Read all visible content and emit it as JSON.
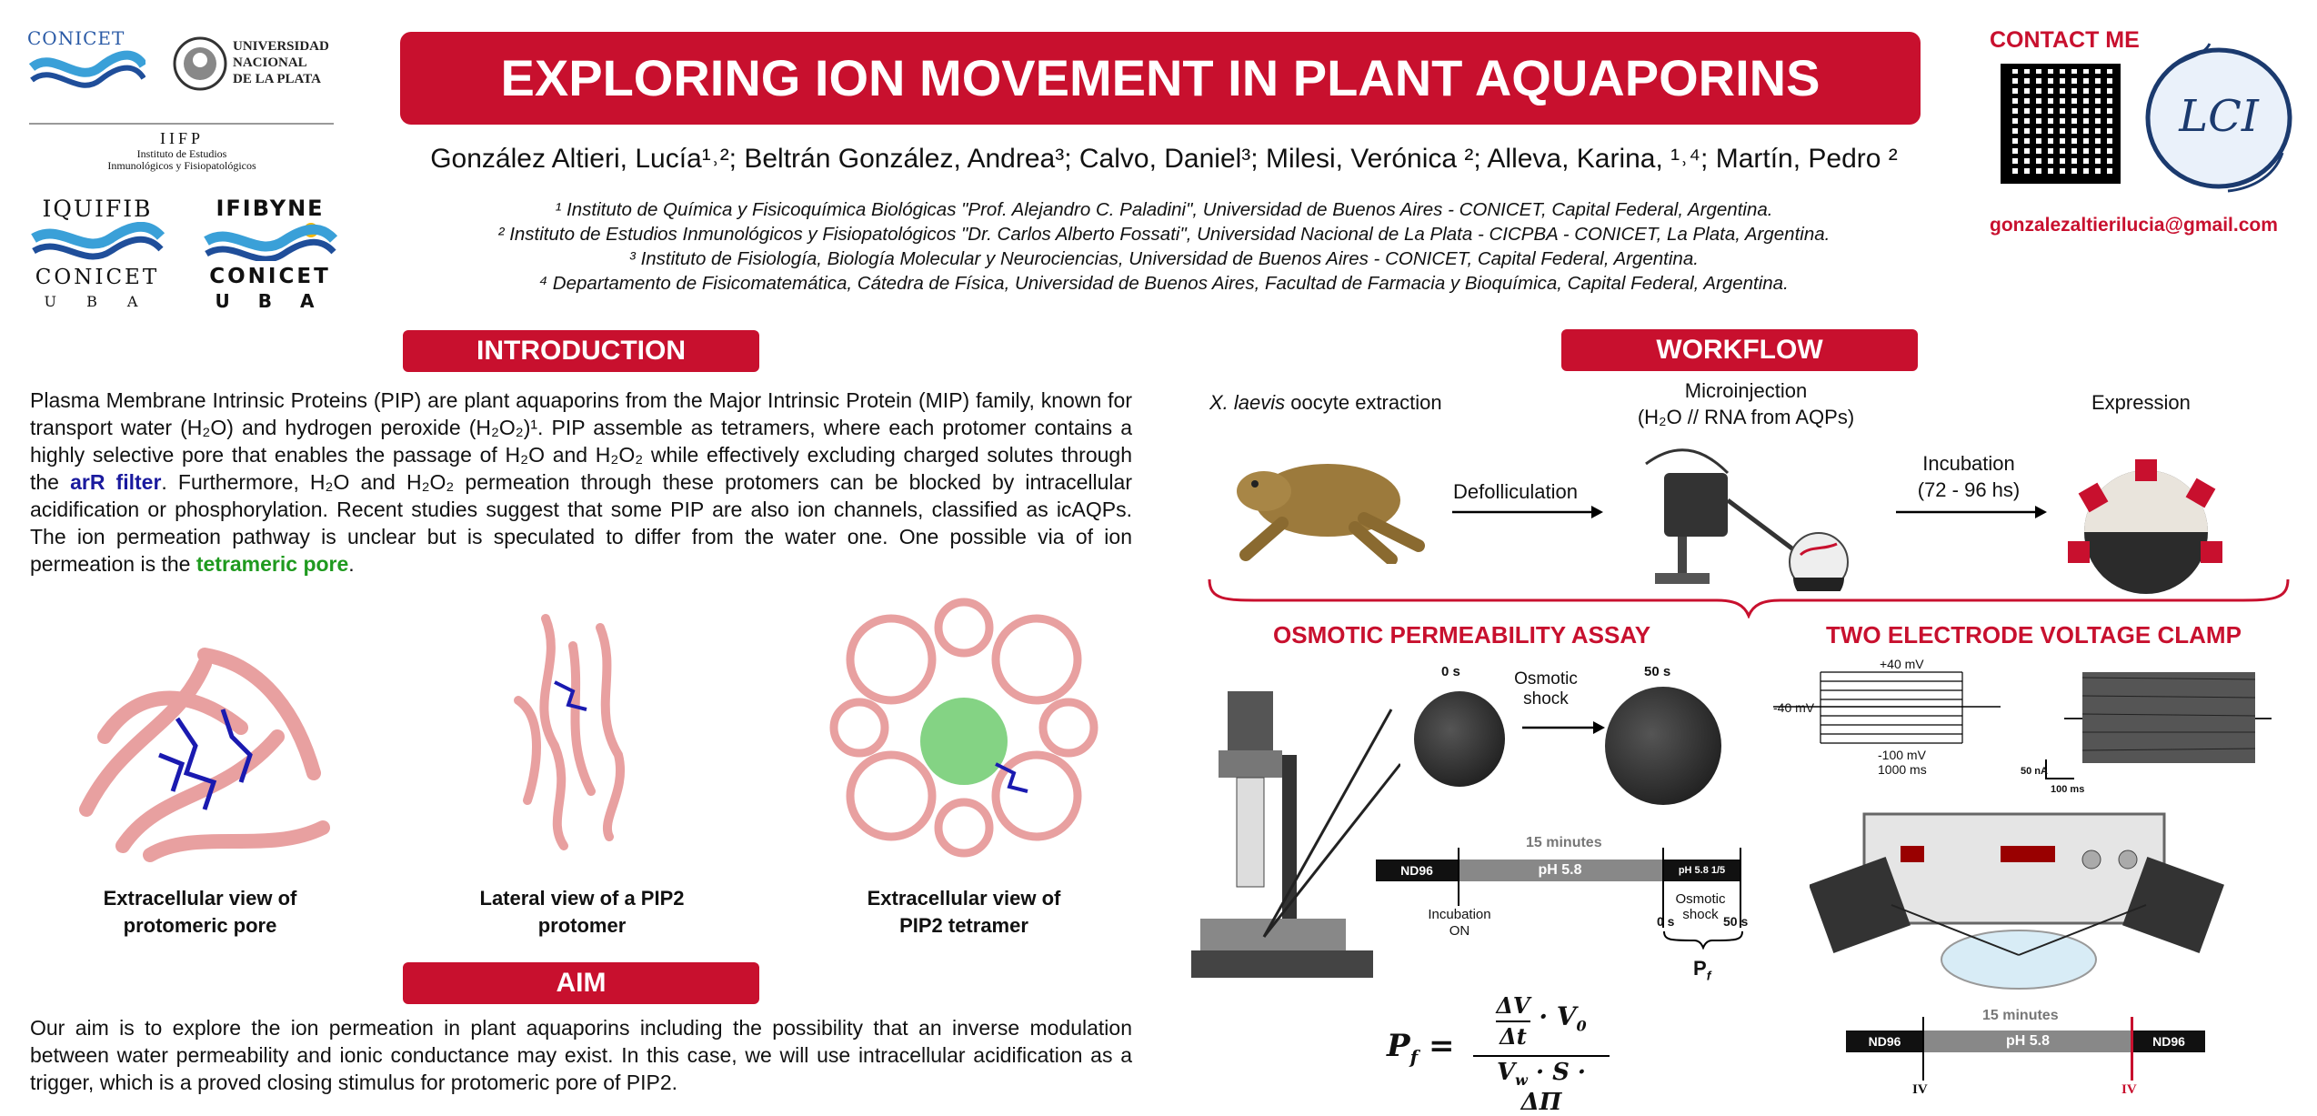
{
  "header": {
    "title": "EXPLORING ION MOVEMENT IN PLANT AQUAPORINS",
    "authors": "González Altieri, Lucía¹˒²; Beltrán González, Andrea³; Calvo, Daniel³; Milesi, Verónica ²;  Alleva, Karina, ¹˒⁴; Martín, Pedro ²",
    "affiliations": [
      "¹ Instituto de Química y Fisicoquímica Biológicas \"Prof. Alejandro C. Paladini\", Universidad de Buenos Aires - CONICET, Capital Federal, Argentina.",
      "² Instituto de Estudios Inmunológicos y Fisiopatológicos \"Dr. Carlos Alberto Fossati\", Universidad Nacional de La Plata - CICPBA - CONICET, La Plata, Argentina.",
      "³ Instituto de Fisiología, Biología Molecular y Neurociencias, Universidad de Buenos Aires - CONICET, Capital Federal, Argentina.",
      "⁴ Departamento de Fisicomatemática, Cátedra de Física, Universidad de Buenos Aires, Facultad de Farmacia y Bioquímica, Capital Federal, Argentina."
    ]
  },
  "logos": {
    "conicet": "CONICET",
    "unlp": [
      "UNIVERSIDAD",
      "NACIONAL",
      "DE LA PLATA"
    ],
    "iifp": "IIFP",
    "iifp_sub": [
      "Instituto de Estudios",
      "Inmunológicos y Fisiopatológicos"
    ],
    "iquifib": "IQUIFIB",
    "ifibyne": "IFIBYNE",
    "conicet2": "CONICET",
    "uba": "U  B  A",
    "lci": "LCI"
  },
  "contact": {
    "label": "CONTACT ME",
    "email": "gonzalezaltierilucia@gmail.com"
  },
  "introduction": {
    "heading": "INTRODUCTION",
    "p1": "Plasma Membrane Intrinsic Proteins (PIP) are plant aquaporins from the Major Intrinsic Protein (MIP) family, known for transport water (H₂O) and hydrogen peroxide (H₂O₂)¹. PIP assemble as tetramers, where each protomer contains a highly selective pore that enables the passage of H₂O and H₂O₂ while effectively excluding charged solutes through the ",
    "arR": "arR filter",
    "p2": ". Furthermore, H₂O and H₂O₂ permeation through these protomers can be blocked by intracellular acidification or phosphorylation. Recent studies suggest that some PIP are also ion channels, classified as icAQPs. The ion permeation pathway is unclear but is speculated to differ from the water one. One possible via of ion permeation is the ",
    "tetra": "tetrameric pore",
    "p3": ".",
    "captions": [
      [
        "Extracellular view of",
        "protomeric pore"
      ],
      [
        "Lateral view of a PIP2",
        "protomer"
      ],
      [
        "Extracellular view of",
        "PIP2 tetramer"
      ]
    ]
  },
  "aim": {
    "heading": "AIM",
    "text": "Our aim is to explore the ion permeation in plant aquaporins including the possibility that an inverse modulation between water permeability and ionic conductance may exist. In this case, we will use intracellular acidification as a trigger, which is a proved closing stimulus for protomeric pore of PIP2."
  },
  "workflow": {
    "heading": "WORKFLOW",
    "step1": "oocyte extraction",
    "step1_species": "X. laevis",
    "step2": "Defolliculation",
    "step3": [
      "Microinjection",
      "(H₂O // RNA from AQPs)"
    ],
    "step4": [
      "Incubation",
      "(72 - 96 hs)"
    ],
    "step5": "Expression"
  },
  "osmotic": {
    "heading": "OSMOTIC PERMEABILITY ASSAY",
    "t0": "0 s",
    "t50": "50 s",
    "shock": [
      "Osmotic",
      "shock"
    ],
    "minutes": "15 minutes",
    "nd96": "ND96",
    "ph": "pH 5.8",
    "ph15": "pH 5.8 1/5",
    "incubation": [
      "Incubation",
      "ON"
    ],
    "shock2": [
      "Osmotic",
      "shock"
    ],
    "s0": "0 s",
    "s50": "50 s",
    "pf": "P",
    "pf_sub": "f"
  },
  "tevc": {
    "heading": "TWO ELECTRODE VOLTAGE CLAMP",
    "v40": "+40 mV",
    "vm40": "-40 mV",
    "v100": "-100 mV",
    "ms1000": "1000 ms",
    "na50": "50 nA",
    "ms100": "100 ms",
    "minutes": "15 minutes",
    "nd96a": "ND96",
    "ph": "pH 5.8",
    "nd96b": "ND96",
    "iv1": "IV",
    "iv2": "IV",
    "panel": "30.0"
  },
  "colors": {
    "accent": "#c8102e",
    "blue": "#1a1a9e",
    "green": "#1f9a1f"
  }
}
